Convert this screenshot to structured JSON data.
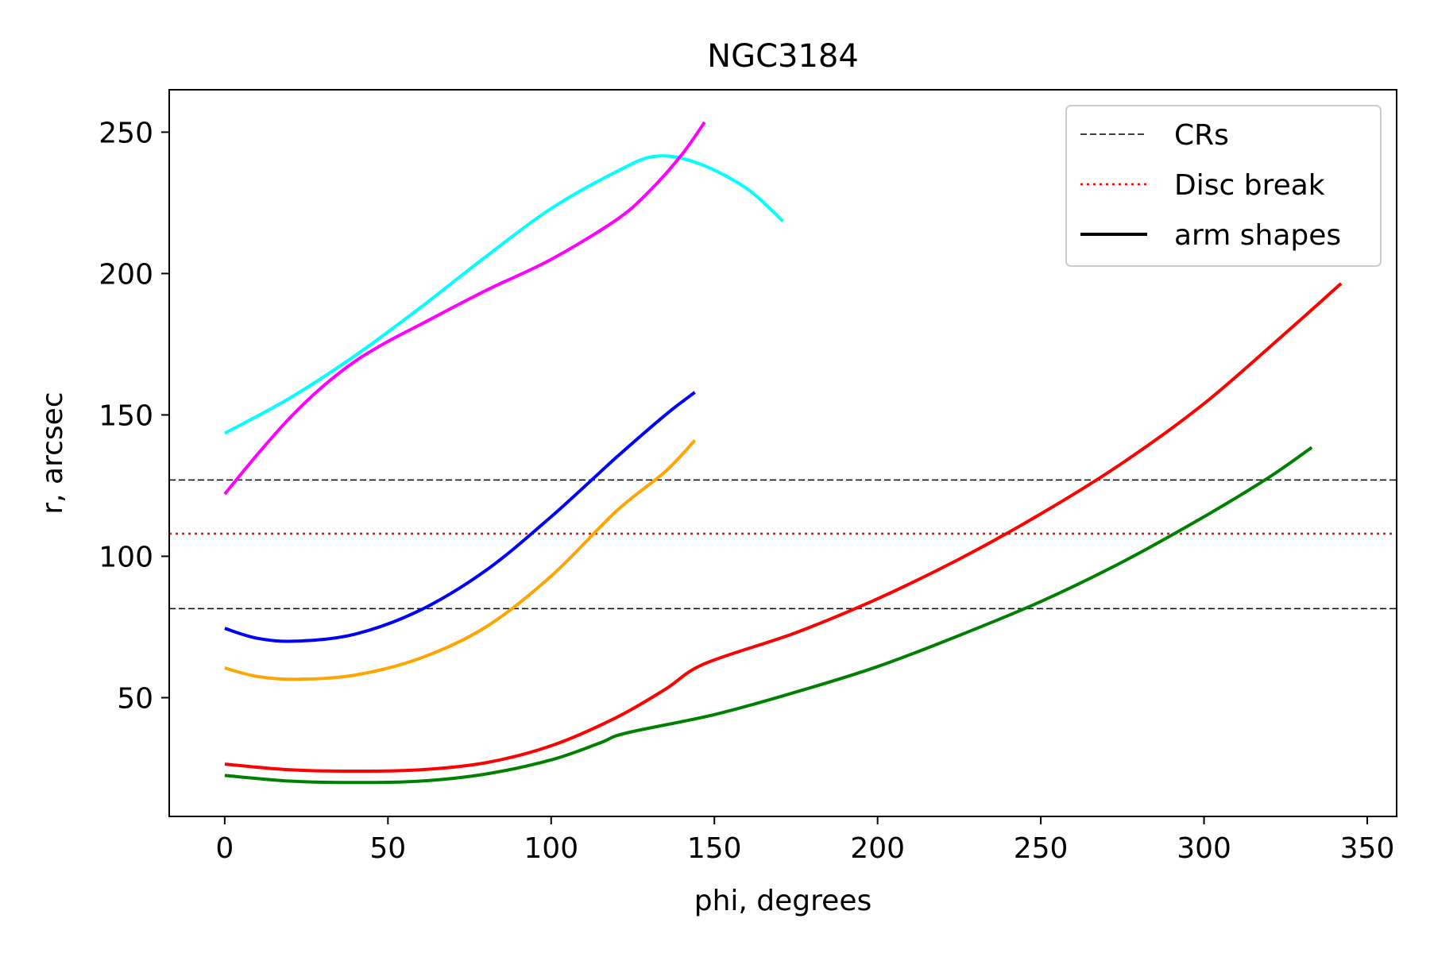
{
  "chart_data": {
    "type": "line",
    "title": "NGC3184",
    "xlabel": "phi, degrees",
    "ylabel": "r, arcsec",
    "xlim": [
      -17,
      359
    ],
    "ylim": [
      8,
      265
    ],
    "xticks": [
      0,
      50,
      100,
      150,
      200,
      250,
      300,
      350
    ],
    "yticks": [
      50,
      100,
      150,
      200,
      250
    ],
    "grid": false,
    "legend_position": "top-right",
    "legend": [
      {
        "label": "CRs",
        "style": "dashed",
        "color": "#000000"
      },
      {
        "label": "Disc break",
        "style": "dotted",
        "color": "#ff0000"
      },
      {
        "label": "arm shapes",
        "style": "solid",
        "color": "#000000"
      }
    ],
    "reference_lines": [
      {
        "kind": "CRs",
        "y": 127,
        "color": "#000000",
        "style": "dashed"
      },
      {
        "kind": "CRs",
        "y": 81.5,
        "color": "#000000",
        "style": "dashed"
      },
      {
        "kind": "Disc break",
        "y": 108,
        "color": "#ff0000",
        "style": "dotted"
      }
    ],
    "series": [
      {
        "color": "#00ffff",
        "x": [
          0,
          20,
          40,
          60,
          80,
          100,
          120,
          132,
          145,
          160,
          171
        ],
        "y": [
          143.5,
          156,
          171,
          188,
          206,
          223,
          236,
          241.5,
          239,
          230,
          218.5
        ]
      },
      {
        "color": "#ff00ff",
        "x": [
          0,
          10,
          20,
          30,
          40,
          50,
          60,
          80,
          100,
          120,
          130,
          140,
          147
        ],
        "y": [
          122,
          136,
          149,
          160,
          169,
          176,
          182,
          194,
          205,
          219,
          229,
          242,
          253.5
        ]
      },
      {
        "color": "#0000ff",
        "x": [
          0,
          10,
          22,
          40,
          60,
          80,
          100,
          120,
          135,
          144
        ],
        "y": [
          74.5,
          71,
          70,
          72.5,
          81,
          95,
          114,
          135,
          150,
          158
        ]
      },
      {
        "color": "#ffa500",
        "x": [
          0,
          10,
          22,
          40,
          60,
          80,
          100,
          120,
          135,
          144
        ],
        "y": [
          60.5,
          57.5,
          56.5,
          58,
          64,
          75,
          93,
          116,
          130,
          141
        ]
      },
      {
        "color": "#ff0000",
        "x": [
          0,
          20,
          40,
          60,
          80,
          100,
          120,
          135,
          147,
          175,
          200,
          225,
          250,
          275,
          300,
          325,
          342
        ],
        "y": [
          26.5,
          24.5,
          24,
          24.5,
          27,
          33,
          43,
          53,
          62,
          73,
          85,
          99,
          115,
          133,
          154,
          179,
          196.5
        ]
      },
      {
        "color": "#008000",
        "x": [
          0,
          20,
          40,
          60,
          80,
          100,
          115,
          123,
          150,
          175,
          200,
          225,
          250,
          275,
          300,
          320,
          333
        ],
        "y": [
          22.5,
          20.5,
          20,
          20.5,
          23,
          28,
          34,
          37.5,
          44,
          52,
          61,
          72,
          84,
          98,
          114,
          128,
          138.5
        ]
      }
    ]
  }
}
